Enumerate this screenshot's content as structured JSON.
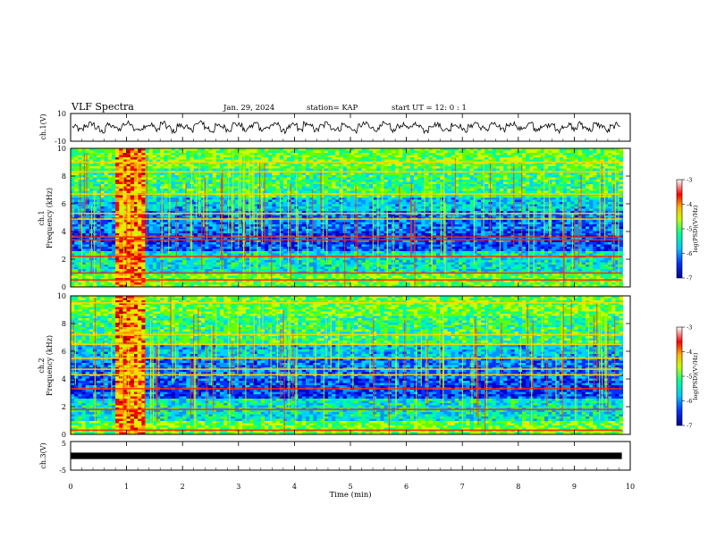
{
  "header": {
    "title": "VLF Spectra",
    "date": "Jan. 29, 2024",
    "station": "station= KAP",
    "start_ut": "start UT =  12: 0  : 1"
  },
  "colors": {
    "spectrum_scale": [
      "#0000b4",
      "#0050ff",
      "#00c8ff",
      "#00ff80",
      "#c8ff00",
      "#ffb400",
      "#ff0000",
      "#8c0000"
    ],
    "waveform": "#000000"
  },
  "chart_data": [
    {
      "type": "line",
      "panel": "ch1-waveform",
      "ylabel": "ch.1(V)",
      "ylim": [
        -10,
        10
      ],
      "yticks": [
        "10",
        "-10"
      ],
      "xlim": [
        0,
        10
      ],
      "series": [
        {
          "values_description_note": ""
        }
      ],
      "samples": [
        0.4,
        -1.8,
        1.2,
        2.6,
        -0.5,
        -2.9,
        1.7,
        0.2,
        -1.1,
        2.3,
        3.1,
        -0.8,
        -2.2,
        0.9,
        1.6,
        -1.4,
        2.8,
        0.1,
        -2.6,
        1.3,
        0.7,
        -1.9,
        2.0,
        3.4,
        -0.3,
        -2.4,
        1.1,
        0.5,
        -1.6,
        2.5,
        1.9,
        -2.1,
        0.6,
        2.9,
        -1.2,
        -0.4,
        1.8,
        2.2,
        -2.8,
        0.3,
        1.5,
        -1.7,
        2.7,
        0.8,
        -2.0,
        1.0,
        3.0,
        -0.9,
        -1.3,
        2.1,
        0.0,
        -2.5,
        1.4,
        2.4,
        -0.6,
        -1.5,
        2.6,
        1.2,
        -2.3,
        0.9,
        1.7,
        -0.7,
        2.9,
        0.4,
        -2.7,
        1.6,
        2.0,
        -1.0,
        -1.8,
        2.3,
        1.1,
        -2.2,
        0.5,
        3.2,
        -0.2,
        -1.4,
        2.5,
        0.7,
        -2.0,
        1.9,
        2.8,
        -1.1,
        0.2,
        2.4,
        -1.6,
        -0.5,
        1.3,
        3.0,
        -2.4,
        0.8,
        1.5,
        -1.2,
        2.7,
        0.1,
        -1.9,
        2.2,
        1.0,
        -2.6,
        0.6,
        2.0
      ]
    },
    {
      "type": "heatmap",
      "panel": "ch1-spectrogram",
      "ylabel_line1": "ch.1",
      "ylabel_line2": "Frequency (kHz)",
      "ylim": [
        0,
        10
      ],
      "yticks": [
        "0",
        "2",
        "4",
        "6",
        "8",
        "10"
      ],
      "xlim": [
        0,
        10
      ],
      "colorbar": {
        "label": "log(PSD)(V²/Hz)",
        "ticks": [
          "-3",
          "-4",
          "-5",
          "-6",
          "-7"
        ],
        "range": [
          -7,
          -3
        ]
      },
      "burst": {
        "t_start": 0.75,
        "t_end": 1.3
      },
      "lines_khz": [
        0.5,
        1.0,
        2.2,
        3.4,
        3.6,
        4.9,
        5.3,
        6.7,
        8.3,
        9.0
      ]
    },
    {
      "type": "heatmap",
      "panel": "ch2-spectrogram",
      "ylabel_line1": "ch.2",
      "ylabel_line2": "Frequency (kHz)",
      "ylim": [
        0,
        10
      ],
      "yticks": [
        "0",
        "2",
        "4",
        "6",
        "8",
        "10"
      ],
      "xlim": [
        0,
        10
      ],
      "colorbar": {
        "label": "log(PSD)(V²/Hz)",
        "ticks": [
          "-3",
          "-4",
          "-5",
          "-6",
          "-7"
        ],
        "range": [
          -7,
          -3
        ]
      },
      "burst": {
        "t_start": 0.75,
        "t_end": 1.3
      },
      "lines_khz": [
        0.3,
        1.8,
        3.3,
        4.3,
        4.7,
        5.5,
        6.5,
        7.2,
        9.5
      ]
    },
    {
      "type": "line",
      "panel": "ch3-waveform",
      "ylabel": "ch.3(V)",
      "ylim": [
        -5,
        5
      ],
      "yticks": [
        "5",
        "-5"
      ],
      "xlim": [
        0,
        10
      ],
      "value_band": [
        -0.5,
        0.5
      ]
    }
  ],
  "xaxis": {
    "label": "Time (min)",
    "ticks": [
      "0",
      "1",
      "2",
      "3",
      "4",
      "5",
      "6",
      "7",
      "8",
      "9",
      "10"
    ]
  }
}
